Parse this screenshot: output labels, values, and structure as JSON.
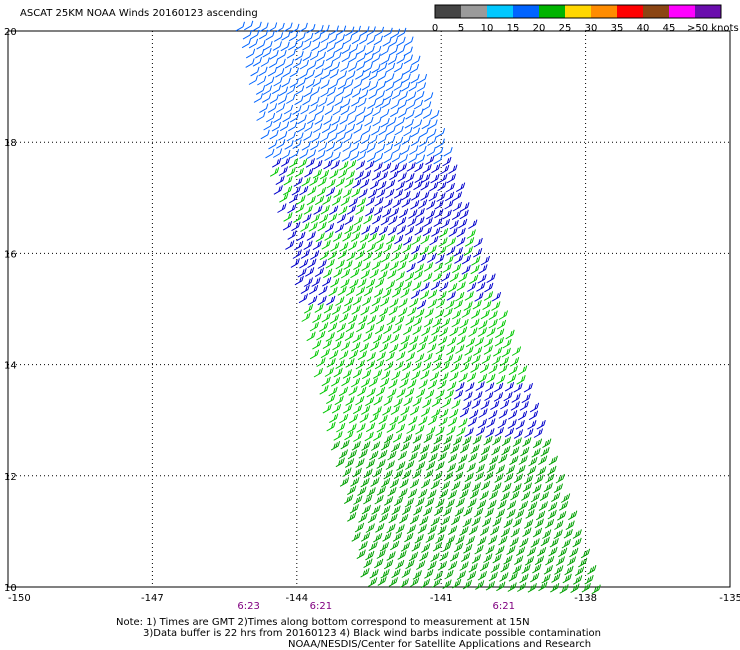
{
  "title": "ASCAT 25KM NOAA Winds 20160123 ascending",
  "legend": {
    "labels": [
      "0",
      "5",
      "10",
      "15",
      "20",
      "25",
      "30",
      "35",
      "40",
      "45",
      ">50 knots"
    ],
    "colors": [
      "#444444",
      "#9a9a9a",
      "#00c8ff",
      "#0064ff",
      "#00b400",
      "#ffd700",
      "#ff8c00",
      "#ff0000",
      "#8b4513",
      "#ff00ff",
      "#6a0dad"
    ]
  },
  "map": {
    "lon_range": [
      -150,
      -135
    ],
    "lat_range": [
      10,
      20
    ],
    "lon_ticks": [
      "-150",
      "-147",
      "-144",
      "-141",
      "-138",
      "-135"
    ],
    "lat_ticks": [
      "20",
      "18",
      "16",
      "14",
      "12",
      "10"
    ]
  },
  "times": [
    {
      "label": "6:23",
      "lon": -145.0
    },
    {
      "label": "6:21",
      "lon": -143.5
    },
    {
      "label": "6:21",
      "lon": -139.7
    }
  ],
  "barb_colors": {
    "calm_blue": "#0064ff",
    "strong_blue": "#0000cc",
    "green": "#00c800",
    "dark_green": "#00a000"
  },
  "notes": {
    "line1": "Note: 1) Times are GMT 2)Times along bottom correspond to measurement at 15N",
    "line2": "3)Data buffer is 22 hrs from 20160123 4) Black wind barbs indicate possible contamination",
    "line3": "NOAA/NESDIS/Center for Satellite Applications and Research"
  }
}
